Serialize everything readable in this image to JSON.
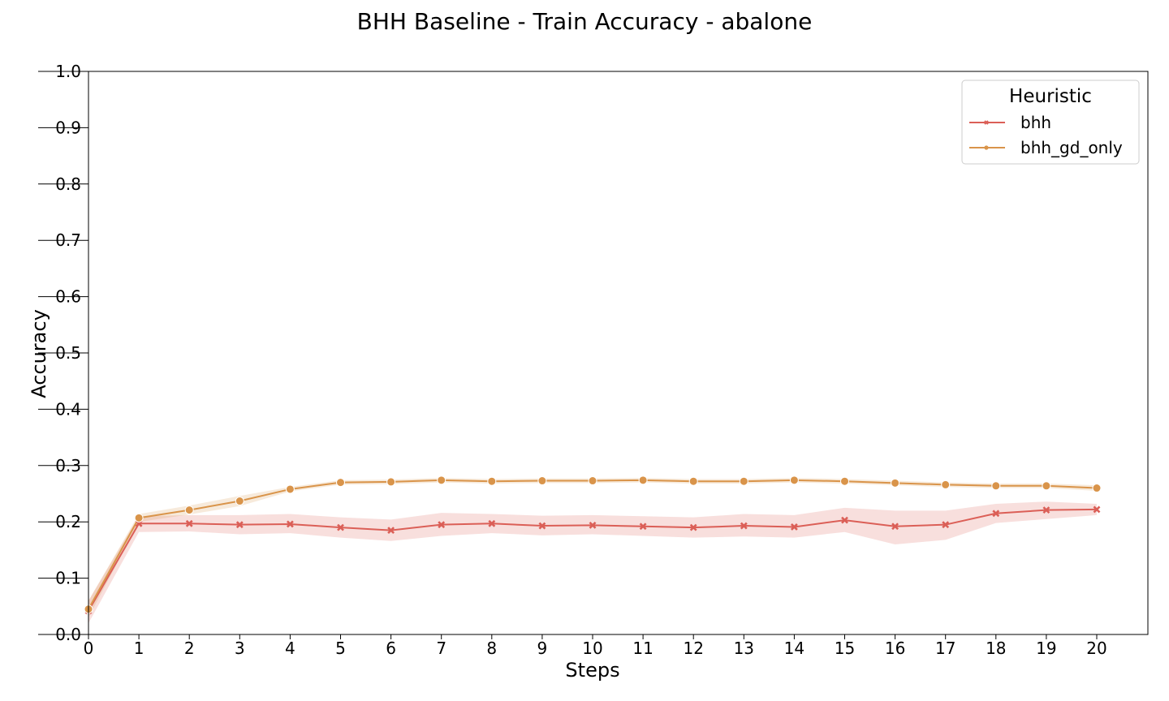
{
  "chart_data": {
    "type": "line",
    "title": "BHH Baseline - Train Accuracy - abalone",
    "xlabel": "Steps",
    "ylabel": "Accuracy",
    "xlim": [
      0,
      21
    ],
    "ylim": [
      0.0,
      1.0
    ],
    "x": [
      0,
      1,
      2,
      3,
      4,
      5,
      6,
      7,
      8,
      9,
      10,
      11,
      12,
      13,
      14,
      15,
      16,
      17,
      18,
      19,
      20
    ],
    "x_ticks": [
      "0",
      "1",
      "2",
      "3",
      "4",
      "5",
      "6",
      "7",
      "8",
      "9",
      "10",
      "11",
      "12",
      "13",
      "14",
      "15",
      "16",
      "17",
      "18",
      "19",
      "20"
    ],
    "y_ticks": [
      "0.0",
      "0.1",
      "0.2",
      "0.3",
      "0.4",
      "0.5",
      "0.6",
      "0.7",
      "0.8",
      "0.9",
      "1.0"
    ],
    "grid": false,
    "legend": {
      "title": "Heuristic",
      "position": "top-right"
    },
    "series": [
      {
        "name": "bhh",
        "color": "#db5f57",
        "marker": "x",
        "values": [
          0.042,
          0.197,
          0.197,
          0.195,
          0.196,
          0.19,
          0.185,
          0.195,
          0.197,
          0.193,
          0.194,
          0.192,
          0.19,
          0.193,
          0.191,
          0.203,
          0.192,
          0.195,
          0.215,
          0.221,
          0.222
        ],
        "ci_low": [
          0.02,
          0.182,
          0.183,
          0.178,
          0.18,
          0.172,
          0.166,
          0.175,
          0.18,
          0.176,
          0.178,
          0.175,
          0.172,
          0.174,
          0.172,
          0.182,
          0.16,
          0.168,
          0.198,
          0.205,
          0.212
        ],
        "ci_high": [
          0.06,
          0.21,
          0.212,
          0.212,
          0.214,
          0.208,
          0.204,
          0.216,
          0.214,
          0.211,
          0.212,
          0.21,
          0.208,
          0.214,
          0.212,
          0.225,
          0.22,
          0.22,
          0.232,
          0.236,
          0.232
        ]
      },
      {
        "name": "bhh_gd_only",
        "color": "#d9944a",
        "marker": "o",
        "values": [
          0.045,
          0.207,
          0.221,
          0.237,
          0.258,
          0.27,
          0.271,
          0.274,
          0.272,
          0.273,
          0.273,
          0.274,
          0.272,
          0.272,
          0.274,
          0.272,
          0.269,
          0.266,
          0.264,
          0.264,
          0.26
        ],
        "ci_low": [
          0.03,
          0.2,
          0.213,
          0.228,
          0.254,
          0.266,
          0.267,
          0.27,
          0.268,
          0.269,
          0.269,
          0.27,
          0.268,
          0.268,
          0.27,
          0.268,
          0.265,
          0.262,
          0.26,
          0.26,
          0.255
        ],
        "ci_high": [
          0.06,
          0.214,
          0.229,
          0.246,
          0.262,
          0.274,
          0.275,
          0.278,
          0.276,
          0.277,
          0.277,
          0.278,
          0.276,
          0.276,
          0.278,
          0.276,
          0.273,
          0.27,
          0.268,
          0.268,
          0.265
        ]
      }
    ]
  }
}
